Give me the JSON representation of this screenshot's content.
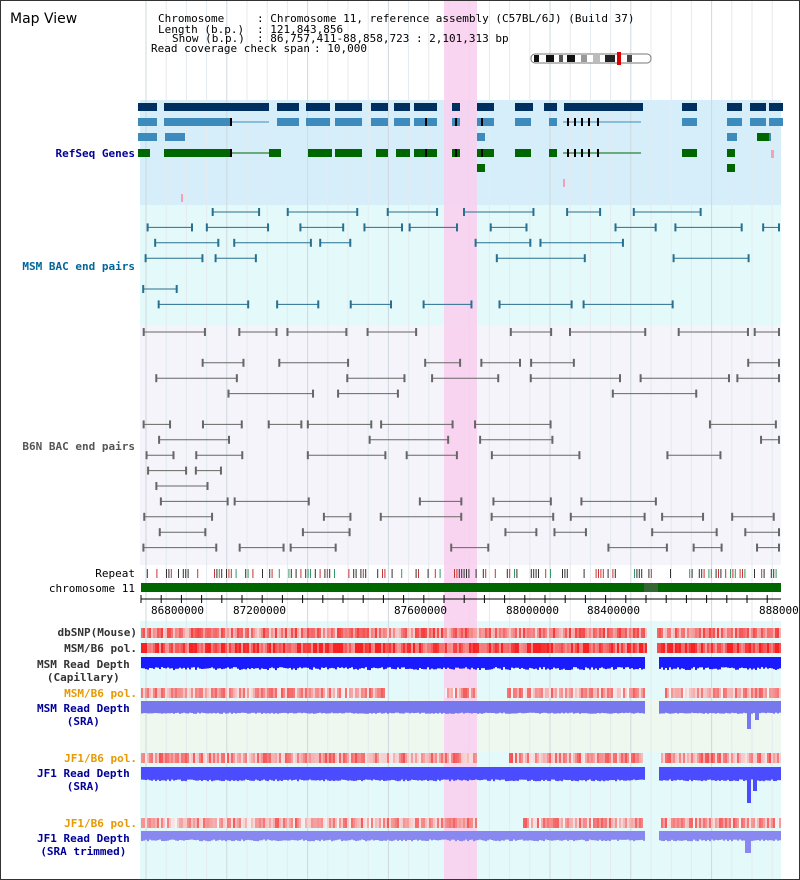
{
  "view_title": "Map View",
  "info": {
    "chromosome_label": "Chromosome",
    "chromosome_value": ": Chromosome 11, reference assembly (C57BL/6J) (Build 37)",
    "length_label": "Length (b.p.)",
    "length_value": ": 121,843,856",
    "show_label": "Show (b.p.)",
    "show_value": ": 86,757,411-88,858,723 : 2,101,313 bp",
    "coverage_label": "Read coverage check span",
    "coverage_value": ": 10,000"
  },
  "tracks": {
    "refseq": "RefSeq Genes",
    "msm_bac": "MSM BAC end pairs",
    "b6n_bac": "B6N BAC end pairs",
    "repeat": "Repeat",
    "chromosome": "chromosome 11",
    "dbsnp": "dbSNP(Mouse)",
    "msm_b6_pol_1": "MSM/B6 pol.",
    "msm_depth_cap_1": "MSM Read Depth",
    "msm_depth_cap_2": "(Capillary)",
    "msm_b6_pol_2": "MSM/B6 pol.",
    "msm_depth_sra_1": "MSM Read Depth",
    "msm_depth_sra_2": "(SRA)",
    "jf1_pol_1": "JF1/B6 pol.",
    "jf1_depth_sra_1": "JF1 Read Depth",
    "jf1_depth_sra_2": "(SRA)",
    "jf1_pol_2": "JF1/B6 pol.",
    "jf1_depth_trim_1": "JF1 Read Depth",
    "jf1_depth_trim_2": "(SRA trimmed)"
  },
  "axis_ticks": [
    "86800000",
    "87200000",
    "87600000",
    "88000000",
    "88400000",
    "888000"
  ],
  "colors": {
    "refseq_label": "#000099",
    "msm_label": "#006699",
    "b6n_label": "#555555",
    "sra_label": "#000099",
    "pol_label": "#e69900",
    "highlight": "#f8d0f0",
    "chrom_bar": "#006600",
    "gene_dark": "#00305f",
    "gene_mid": "#3d8bbd",
    "gene_green": "#006600"
  }
}
